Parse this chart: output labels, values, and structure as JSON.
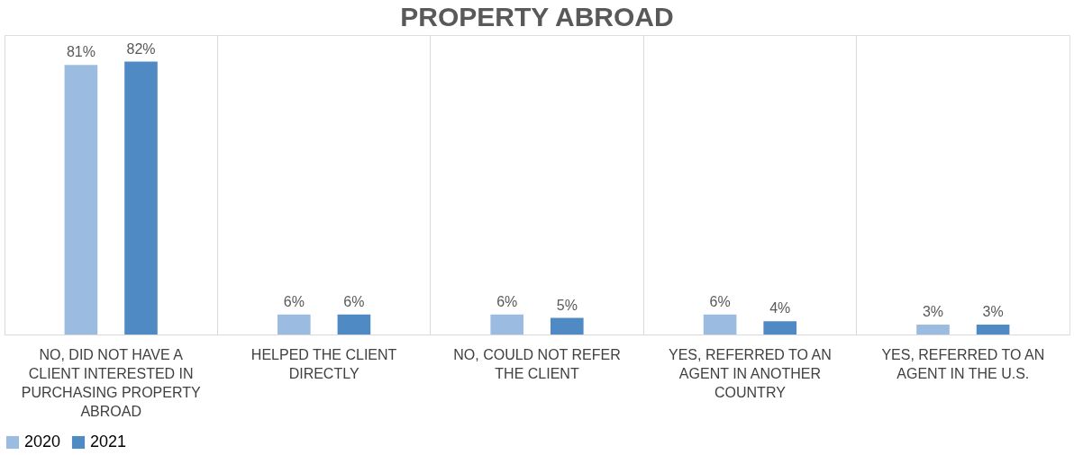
{
  "chart_data": {
    "type": "bar",
    "title": "PROPERTY ABROAD",
    "categories": [
      "NO, DID NOT HAVE A CLIENT INTERESTED IN PURCHASING PROPERTY ABROAD",
      "HELPED THE CLIENT DIRECTLY",
      "NO, COULD NOT REFER THE CLIENT",
      "YES, REFERRED TO AN AGENT IN ANOTHER COUNTRY",
      "YES, REFERRED TO AN AGENT IN THE U.S."
    ],
    "series": [
      {
        "name": "2020",
        "color": "#9bbbe0",
        "values": [
          81,
          6,
          6,
          6,
          3
        ],
        "value_labels": [
          "81%",
          "6%",
          "6%",
          "6%",
          "3%"
        ]
      },
      {
        "name": "2021",
        "color": "#4f8ac4",
        "values": [
          82,
          6,
          5,
          4,
          3
        ],
        "value_labels": [
          "82%",
          "6%",
          "5%",
          "4%",
          "3%"
        ]
      }
    ],
    "grid": "x",
    "legend": "bottom"
  }
}
